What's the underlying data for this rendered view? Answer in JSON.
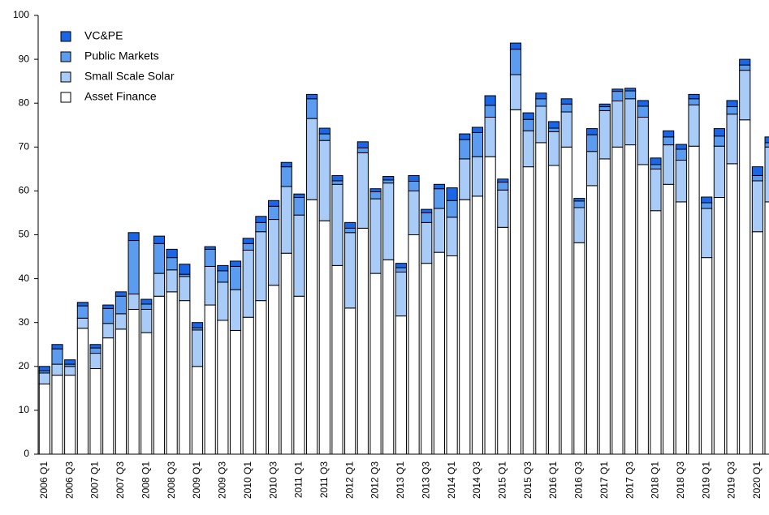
{
  "chart_data": {
    "type": "stacked_bar",
    "categories": [
      "2006 Q1",
      null,
      "2006 Q3",
      null,
      "2007 Q1",
      null,
      "2007 Q3",
      null,
      "2008 Q1",
      null,
      "2008 Q3",
      null,
      "2009 Q1",
      null,
      "2009 Q3",
      null,
      "2010 Q1",
      null,
      "2010 Q3",
      null,
      "2011 Q1",
      null,
      "2011 Q3",
      null,
      "2012 Q1",
      null,
      "2012 Q3",
      null,
      "2013 Q1",
      null,
      "2013 Q3",
      null,
      "2014 Q1",
      null,
      "2014 Q3",
      null,
      "2015 Q1",
      null,
      "2015 Q3",
      null,
      "2016 Q1",
      null,
      "2016 Q3",
      null,
      "2017 Q1",
      null,
      "2017 Q3",
      null,
      "2018 Q1",
      null,
      "2018 Q3",
      null,
      "2019 Q1",
      null,
      "2019 Q3",
      null,
      "2020 Q1",
      null
    ],
    "series": [
      {
        "name": "Asset Finance",
        "color": "#ffffff",
        "values": [
          16,
          18,
          18,
          28.7,
          19.5,
          26.5,
          28.5,
          33,
          27.7,
          36,
          37,
          35,
          20,
          34,
          30.5,
          28.2,
          31.2,
          35,
          38.5,
          45.8,
          36,
          58,
          53.2,
          43,
          33.3,
          51.5,
          41.2,
          44.3,
          31.5,
          50,
          43.5,
          46,
          45.2,
          58,
          58.8,
          67.8,
          51.7,
          78.5,
          65.5,
          71,
          65.8,
          70,
          48.2,
          61.2,
          67.3,
          70,
          70.5,
          66,
          55.5,
          61.5,
          57.5,
          70.2,
          44.8,
          58.5,
          66.2,
          76.2,
          50.7,
          57.5
        ]
      },
      {
        "name": "Small Scale Solar",
        "color": "#a9cbf7",
        "values": [
          2.5,
          2.5,
          2,
          2.3,
          3.5,
          3.3,
          3.5,
          3.5,
          5.3,
          5.2,
          5,
          5.5,
          8.3,
          8.8,
          8.7,
          9.3,
          15.3,
          15.7,
          15,
          15.2,
          18.5,
          18.5,
          18.3,
          18.5,
          17.2,
          17.2,
          17,
          17.5,
          10,
          10,
          9.3,
          10,
          8.8,
          9.3,
          9,
          9,
          8.5,
          8,
          8.2,
          8.3,
          7.7,
          8,
          8,
          7.8,
          11,
          10.5,
          10.5,
          10.8,
          9.5,
          9,
          9.5,
          9.4,
          11.2,
          11.7,
          11.3,
          11.3,
          11.6,
          12.5
        ]
      },
      {
        "name": "Public Markets",
        "color": "#5b9bf0",
        "values": [
          0.5,
          3.5,
          0.5,
          2.8,
          1.2,
          3.4,
          4,
          12.2,
          1.2,
          6.8,
          2.8,
          0.5,
          0.5,
          3.9,
          2.6,
          5.3,
          1.5,
          2.1,
          3,
          4.5,
          4,
          4.5,
          1.5,
          0.8,
          1,
          1.1,
          1.6,
          0.7,
          1,
          2.2,
          2.2,
          4.5,
          3.8,
          4.4,
          5.5,
          2.7,
          1.8,
          5.8,
          2.6,
          1.7,
          0.8,
          1.8,
          1.5,
          3.8,
          0.9,
          2.2,
          1.8,
          2.5,
          1,
          1.8,
          2.5,
          1.4,
          1.3,
          2.3,
          1.7,
          1.2,
          1.2,
          1
        ]
      },
      {
        "name": "VC&PE",
        "color": "#1a66e6",
        "values": [
          1,
          1,
          1,
          0.8,
          0.8,
          0.8,
          1,
          1.8,
          1.1,
          1.7,
          1.9,
          2.3,
          1.2,
          0.6,
          1.2,
          1.2,
          1.2,
          1.4,
          1.3,
          1,
          0.8,
          1,
          1.3,
          1.2,
          1.3,
          1.4,
          0.7,
          0.8,
          1,
          1.3,
          0.8,
          1,
          2.9,
          1.3,
          1.2,
          2.2,
          0.7,
          1.4,
          1.5,
          1.3,
          1.5,
          1.2,
          0.6,
          1.4,
          0.6,
          0.5,
          0.6,
          1.3,
          1.5,
          1.4,
          1.1,
          1,
          1.3,
          1.7,
          1.4,
          1.3,
          2,
          1.3
        ]
      }
    ],
    "ylim": [
      0,
      100
    ],
    "yticks": [
      0,
      10,
      20,
      30,
      40,
      50,
      60,
      70,
      80,
      90,
      100
    ],
    "grid": false,
    "legend": "upper left"
  }
}
